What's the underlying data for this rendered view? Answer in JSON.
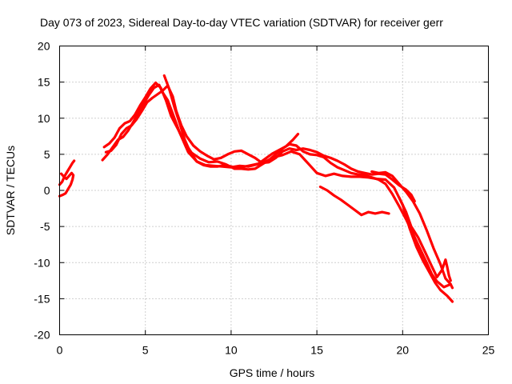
{
  "chart_data": {
    "type": "line",
    "title": "Day 073 of 2023, Sidereal Day-to-day VTEC variation (SDTVAR) for receiver gerr",
    "xlabel": "GPS time / hours",
    "ylabel": "SDTVAR / TECUs",
    "xlim": [
      0,
      25
    ],
    "ylim": [
      -20,
      20
    ],
    "xticks": [
      0,
      5,
      10,
      15,
      20,
      25
    ],
    "yticks": [
      -20,
      -15,
      -10,
      -5,
      0,
      5,
      10,
      15,
      20
    ],
    "x_tick_labels": [
      "0",
      "5",
      "10",
      "15",
      "20",
      "25"
    ],
    "y_tick_labels": [
      "-20",
      "-15",
      "-10",
      "-5",
      "0",
      "5",
      "10",
      "15",
      "20"
    ],
    "grid": true,
    "line_color": "#ff0000",
    "series": [
      {
        "name": "trace-1",
        "points": [
          [
            0.0,
            0.8
          ],
          [
            0.15,
            1.2
          ],
          [
            0.3,
            2.0
          ],
          [
            0.45,
            2.6
          ],
          [
            0.6,
            3.2
          ],
          [
            0.75,
            3.8
          ],
          [
            0.85,
            4.1
          ]
        ]
      },
      {
        "name": "trace-2",
        "points": [
          [
            0.0,
            -0.8
          ],
          [
            0.2,
            -0.6
          ],
          [
            0.35,
            -0.4
          ],
          [
            0.5,
            0.2
          ],
          [
            0.65,
            0.8
          ],
          [
            0.75,
            1.5
          ],
          [
            0.8,
            2.1
          ],
          [
            0.7,
            2.4
          ],
          [
            0.55,
            2.0
          ],
          [
            0.4,
            1.6
          ],
          [
            0.25,
            1.9
          ],
          [
            0.1,
            2.3
          ]
        ]
      },
      {
        "name": "trace-3",
        "points": [
          [
            2.5,
            4.2
          ],
          [
            2.8,
            5.0
          ],
          [
            3.1,
            6.0
          ],
          [
            3.4,
            7.0
          ],
          [
            3.7,
            7.4
          ],
          [
            4.0,
            8.3
          ],
          [
            4.3,
            9.5
          ],
          [
            4.6,
            10.8
          ],
          [
            4.9,
            12.0
          ],
          [
            5.2,
            13.2
          ],
          [
            5.5,
            14.2
          ],
          [
            5.8,
            14.6
          ],
          [
            6.0,
            13.6
          ],
          [
            6.3,
            12.5
          ],
          [
            6.6,
            10.6
          ],
          [
            7.0,
            8.0
          ],
          [
            7.5,
            5.3
          ],
          [
            8.0,
            4.0
          ],
          [
            8.5,
            3.5
          ],
          [
            9.0,
            3.4
          ],
          [
            9.5,
            3.3
          ],
          [
            10.0,
            3.2
          ],
          [
            10.5,
            3.4
          ],
          [
            11.0,
            3.3
          ],
          [
            11.5,
            3.6
          ],
          [
            12.0,
            4.0
          ],
          [
            12.5,
            4.6
          ],
          [
            13.0,
            4.9
          ],
          [
            13.5,
            5.4
          ],
          [
            14.0,
            5.0
          ],
          [
            14.5,
            3.7
          ],
          [
            15.0,
            2.4
          ],
          [
            15.5,
            2.0
          ],
          [
            16.0,
            2.3
          ],
          [
            16.5,
            2.0
          ],
          [
            17.0,
            1.9
          ],
          [
            17.5,
            1.9
          ],
          [
            18.0,
            1.8
          ],
          [
            18.5,
            1.6
          ],
          [
            19.0,
            1.5
          ],
          [
            19.5,
            0.4
          ],
          [
            20.0,
            -2.0
          ],
          [
            20.4,
            -5.2
          ],
          [
            20.8,
            -7.8
          ],
          [
            21.2,
            -9.8
          ],
          [
            21.6,
            -11.5
          ],
          [
            21.9,
            -12.8
          ],
          [
            22.2,
            -13.8
          ],
          [
            22.6,
            -14.6
          ],
          [
            22.9,
            -15.4
          ]
        ]
      },
      {
        "name": "trace-4",
        "points": [
          [
            2.6,
            6.0
          ],
          [
            2.9,
            6.5
          ],
          [
            3.2,
            7.3
          ],
          [
            3.5,
            8.6
          ],
          [
            3.8,
            9.3
          ],
          [
            4.1,
            9.6
          ],
          [
            4.4,
            10.5
          ],
          [
            4.7,
            11.8
          ],
          [
            5.0,
            12.9
          ],
          [
            5.3,
            14.1
          ],
          [
            5.6,
            14.9
          ],
          [
            5.9,
            14.2
          ],
          [
            6.2,
            12.5
          ],
          [
            6.5,
            10.3
          ],
          [
            6.9,
            8.5
          ],
          [
            7.3,
            6.6
          ],
          [
            7.7,
            5.2
          ],
          [
            8.2,
            4.4
          ],
          [
            8.7,
            3.9
          ],
          [
            9.2,
            4.0
          ],
          [
            9.7,
            3.6
          ],
          [
            10.2,
            3.0
          ],
          [
            10.6,
            3.0
          ],
          [
            11.0,
            2.9
          ],
          [
            11.4,
            3.0
          ],
          [
            11.8,
            3.6
          ],
          [
            12.2,
            4.2
          ],
          [
            12.6,
            5.0
          ],
          [
            13.0,
            5.8
          ],
          [
            13.4,
            6.4
          ],
          [
            13.8,
            6.2
          ],
          [
            14.2,
            5.4
          ],
          [
            14.6,
            5.0
          ],
          [
            15.0,
            4.9
          ],
          [
            15.4,
            4.6
          ],
          [
            15.8,
            3.8
          ],
          [
            16.2,
            3.2
          ],
          [
            16.6,
            2.8
          ],
          [
            17.0,
            2.4
          ],
          [
            17.4,
            2.2
          ],
          [
            17.8,
            2.1
          ],
          [
            18.2,
            1.8
          ],
          [
            18.6,
            1.5
          ],
          [
            19.0,
            0.9
          ],
          [
            19.4,
            -0.5
          ],
          [
            19.8,
            -2.2
          ],
          [
            20.2,
            -4.0
          ],
          [
            20.6,
            -6.0
          ],
          [
            21.0,
            -8.0
          ],
          [
            21.4,
            -10.0
          ],
          [
            21.7,
            -11.6
          ],
          [
            22.0,
            -12.6
          ],
          [
            22.4,
            -13.4
          ],
          [
            22.8,
            -13.0
          ]
        ]
      },
      {
        "name": "trace-5",
        "points": [
          [
            2.7,
            5.3
          ],
          [
            3.0,
            5.5
          ],
          [
            3.3,
            6.3
          ],
          [
            3.6,
            7.8
          ],
          [
            3.9,
            8.6
          ],
          [
            4.2,
            9.0
          ],
          [
            4.5,
            9.9
          ],
          [
            4.8,
            11.0
          ],
          [
            5.1,
            12.2
          ],
          [
            5.4,
            12.8
          ],
          [
            5.7,
            13.3
          ],
          [
            6.0,
            13.8
          ],
          [
            6.3,
            14.5
          ],
          [
            6.6,
            13.0
          ],
          [
            6.8,
            11.0
          ],
          [
            7.1,
            9.0
          ],
          [
            7.4,
            7.5
          ],
          [
            7.8,
            6.2
          ],
          [
            8.2,
            5.4
          ],
          [
            8.6,
            4.8
          ],
          [
            9.0,
            4.3
          ],
          [
            9.4,
            4.5
          ],
          [
            9.8,
            5.0
          ],
          [
            10.2,
            5.4
          ],
          [
            10.6,
            5.5
          ],
          [
            11.0,
            5.0
          ],
          [
            11.4,
            4.5
          ],
          [
            11.8,
            3.8
          ],
          [
            12.2,
            3.9
          ],
          [
            12.6,
            4.5
          ],
          [
            13.0,
            5.4
          ],
          [
            13.4,
            5.8
          ],
          [
            13.8,
            5.6
          ],
          [
            14.2,
            5.8
          ],
          [
            14.6,
            5.6
          ],
          [
            15.0,
            5.3
          ],
          [
            15.4,
            4.8
          ],
          [
            15.8,
            4.5
          ],
          [
            16.2,
            4.1
          ],
          [
            16.6,
            3.6
          ],
          [
            17.0,
            3.0
          ],
          [
            17.4,
            2.6
          ],
          [
            17.8,
            2.4
          ],
          [
            18.2,
            2.2
          ],
          [
            18.6,
            2.3
          ],
          [
            19.0,
            2.2
          ],
          [
            19.4,
            1.5
          ],
          [
            19.8,
            0.7
          ],
          [
            20.2,
            0.1
          ],
          [
            20.5,
            -0.6
          ],
          [
            20.7,
            -1.5
          ]
        ]
      },
      {
        "name": "trace-6",
        "points": [
          [
            6.1,
            15.9
          ],
          [
            6.4,
            14.0
          ],
          [
            6.7,
            11.5
          ],
          [
            7.0,
            9.3
          ],
          [
            7.3,
            7.0
          ],
          [
            7.6,
            5.4
          ],
          [
            8.0,
            4.0
          ],
          [
            8.4,
            3.5
          ],
          [
            8.8,
            3.3
          ],
          [
            9.2,
            3.3
          ],
          [
            9.6,
            3.5
          ],
          [
            10.0,
            3.3
          ],
          [
            10.4,
            3.1
          ],
          [
            10.8,
            3.3
          ],
          [
            11.2,
            3.5
          ],
          [
            11.6,
            3.7
          ],
          [
            12.0,
            4.4
          ],
          [
            12.4,
            5.1
          ],
          [
            12.8,
            5.6
          ],
          [
            13.2,
            6.1
          ],
          [
            13.6,
            7.0
          ],
          [
            13.9,
            7.8
          ]
        ]
      },
      {
        "name": "trace-7",
        "points": [
          [
            15.2,
            0.5
          ],
          [
            15.6,
            0.0
          ],
          [
            16.0,
            -0.7
          ],
          [
            16.4,
            -1.3
          ],
          [
            16.8,
            -2.0
          ],
          [
            17.2,
            -2.7
          ],
          [
            17.6,
            -3.4
          ],
          [
            18.0,
            -3.0
          ],
          [
            18.4,
            -3.2
          ],
          [
            18.8,
            -3.0
          ],
          [
            19.2,
            -3.2
          ]
        ]
      },
      {
        "name": "trace-8",
        "points": [
          [
            19.8,
            -1.0
          ],
          [
            20.2,
            -3.0
          ],
          [
            20.5,
            -5.0
          ],
          [
            20.9,
            -6.5
          ],
          [
            21.3,
            -8.5
          ],
          [
            21.7,
            -10.5
          ],
          [
            22.0,
            -12.0
          ],
          [
            22.3,
            -11.0
          ],
          [
            22.5,
            -9.6
          ],
          [
            22.6,
            -10.6
          ],
          [
            22.7,
            -11.8
          ],
          [
            22.8,
            -12.5
          ]
        ]
      },
      {
        "name": "trace-9",
        "points": [
          [
            18.2,
            2.6
          ],
          [
            18.6,
            2.4
          ],
          [
            19.0,
            2.5
          ],
          [
            19.4,
            2.0
          ],
          [
            19.8,
            0.9
          ],
          [
            20.2,
            -0.2
          ],
          [
            20.6,
            -1.5
          ],
          [
            21.0,
            -3.2
          ],
          [
            21.4,
            -5.5
          ],
          [
            21.8,
            -8.0
          ],
          [
            22.2,
            -10.2
          ],
          [
            22.5,
            -12.2
          ],
          [
            22.8,
            -13.0
          ],
          [
            22.9,
            -13.5
          ]
        ]
      }
    ]
  }
}
